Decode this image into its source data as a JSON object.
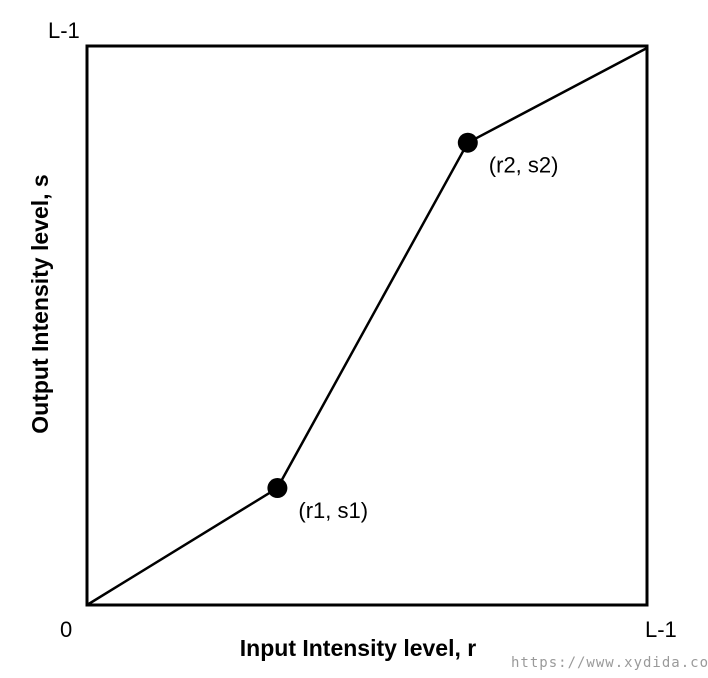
{
  "chart_data": {
    "type": "line",
    "title": "",
    "xlabel": "Input Intensity level, r",
    "ylabel": "Output Intensity level, s",
    "x_tick_labels": {
      "min": "0",
      "max": "L-1"
    },
    "y_tick_labels": {
      "min": "0",
      "max": "L-1"
    },
    "xlim": [
      0,
      1
    ],
    "ylim": [
      0,
      1
    ],
    "grid": false,
    "series": [
      {
        "points": [
          {
            "x": 0,
            "y": 0
          },
          {
            "x": 0.34,
            "y": 0.21
          },
          {
            "x": 0.68,
            "y": 0.83
          },
          {
            "x": 1,
            "y": 1
          }
        ]
      }
    ],
    "annotations": [
      {
        "text": "(r1, s1)",
        "x": 0.34,
        "y": 0.21
      },
      {
        "text": "(r2, s2)",
        "x": 0.68,
        "y": 0.83
      }
    ],
    "colors": {
      "line": "#000000",
      "marker": "#000000",
      "frame": "#000000"
    }
  },
  "watermark": "https://www.xydida.com"
}
